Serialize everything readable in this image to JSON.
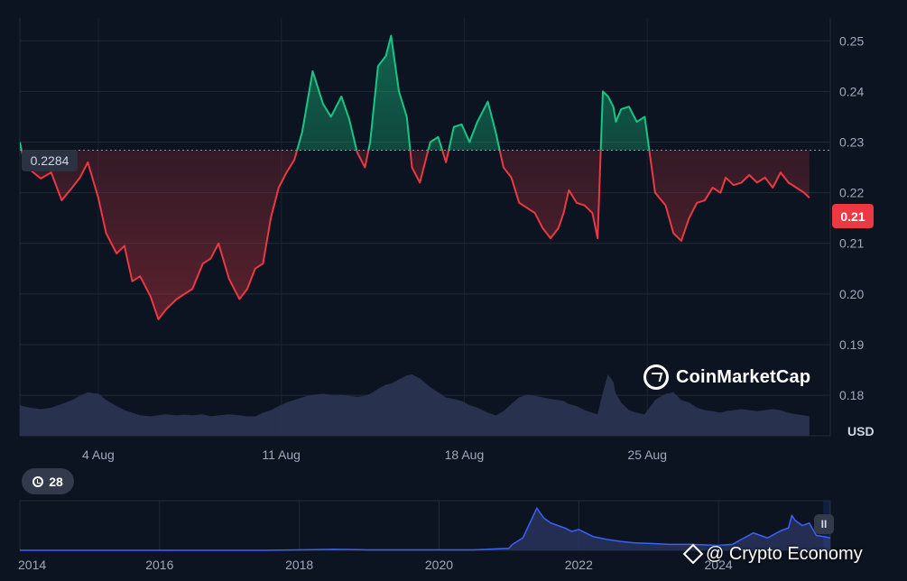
{
  "chart_data": [
    {
      "type": "area",
      "title": "",
      "currency_label": "USD",
      "y_ticks": [
        "0.25",
        "0.24",
        "0.23",
        "0.22",
        "0.21",
        "0.20",
        "0.19",
        "0.18"
      ],
      "y_tick_values": [
        0.25,
        0.24,
        0.23,
        0.22,
        0.21,
        0.2,
        0.19,
        0.18
      ],
      "ylim": [
        0.172,
        0.2545
      ],
      "x_ticks": [
        "4 Aug",
        "11 Aug",
        "18 Aug",
        "25 Aug"
      ],
      "x_tick_days": [
        4,
        11,
        18,
        25
      ],
      "x_range_days": [
        1,
        32
      ],
      "reference_value": 0.2284,
      "reference_label": "0.2284",
      "current_value_label": "0.21",
      "up_color": "#16c784",
      "down_color": "#ea3943",
      "grid": true,
      "legend": "none",
      "series": [
        {
          "x": [
            1.0,
            1.1,
            1.4,
            1.8,
            2.2,
            2.6,
            3.0,
            3.3,
            3.6,
            4.0,
            4.3,
            4.7,
            5.0,
            5.3,
            5.6,
            6.0,
            6.3,
            6.6,
            7.0,
            7.3,
            7.6,
            8.0,
            8.3,
            8.6,
            9.0,
            9.4,
            9.7,
            10.0,
            10.3,
            10.6,
            10.9,
            11.2,
            11.5,
            11.8,
            12.0,
            12.2,
            12.6,
            12.9,
            13.3,
            13.6,
            13.9,
            14.2,
            14.4,
            14.5,
            14.7,
            15.0,
            15.2,
            15.5,
            15.8,
            16.0,
            16.3,
            16.7,
            17.0,
            17.3,
            17.6,
            17.9,
            18.2,
            18.5,
            18.9,
            19.2,
            19.5,
            19.8,
            20.1,
            20.4,
            20.7,
            21.0,
            21.3,
            21.6,
            21.8,
            22.0,
            22.3,
            22.6,
            22.9,
            23.1,
            23.3,
            23.5,
            23.7,
            23.8,
            24.0,
            24.3,
            24.6,
            24.9,
            25.3,
            25.7,
            26.0,
            26.3,
            26.6,
            26.9,
            27.2,
            27.5,
            27.8,
            28.0,
            28.3,
            28.6,
            28.9,
            29.2,
            29.5,
            29.8,
            30.1,
            30.4,
            30.7,
            31.0,
            31.2
          ],
          "values": [
            0.23,
            0.2275,
            0.2245,
            0.2228,
            0.224,
            0.2185,
            0.221,
            0.223,
            0.226,
            0.219,
            0.212,
            0.208,
            0.2095,
            0.2025,
            0.2035,
            0.1995,
            0.195,
            0.197,
            0.199,
            0.2,
            0.201,
            0.206,
            0.207,
            0.21,
            0.203,
            0.199,
            0.201,
            0.205,
            0.206,
            0.215,
            0.221,
            0.224,
            0.2265,
            0.232,
            0.238,
            0.244,
            0.2375,
            0.235,
            0.239,
            0.2345,
            0.228,
            0.225,
            0.23,
            0.235,
            0.245,
            0.247,
            0.251,
            0.24,
            0.235,
            0.225,
            0.222,
            0.23,
            0.231,
            0.226,
            0.233,
            0.2335,
            0.23,
            0.234,
            0.238,
            0.232,
            0.225,
            0.223,
            0.218,
            0.217,
            0.216,
            0.213,
            0.211,
            0.213,
            0.216,
            0.2205,
            0.218,
            0.2175,
            0.216,
            0.211,
            0.24,
            0.239,
            0.237,
            0.234,
            0.2365,
            0.237,
            0.234,
            0.235,
            0.22,
            0.2175,
            0.212,
            0.2105,
            0.215,
            0.218,
            0.2185,
            0.221,
            0.22,
            0.223,
            0.2215,
            0.222,
            0.2235,
            0.222,
            0.223,
            0.221,
            0.224,
            0.222,
            0.221,
            0.22,
            0.219
          ],
          "volume": [
            0.6,
            0.58,
            0.55,
            0.52,
            0.55,
            0.62,
            0.7,
            0.78,
            0.85,
            0.82,
            0.7,
            0.58,
            0.5,
            0.45,
            0.4,
            0.38,
            0.4,
            0.42,
            0.4,
            0.41,
            0.4,
            0.42,
            0.38,
            0.4,
            0.42,
            0.4,
            0.38,
            0.38,
            0.45,
            0.5,
            0.58,
            0.65,
            0.7,
            0.75,
            0.78,
            0.8,
            0.82,
            0.8,
            0.8,
            0.78,
            0.76,
            0.78,
            0.82,
            0.85,
            0.92,
            1.0,
            1.02,
            1.1,
            1.18,
            1.2,
            1.12,
            0.95,
            0.85,
            0.75,
            0.72,
            0.68,
            0.6,
            0.55,
            0.45,
            0.4,
            0.48,
            0.62,
            0.75,
            0.8,
            0.78,
            0.75,
            0.72,
            0.7,
            0.68,
            0.62,
            0.58,
            0.5,
            0.45,
            0.42,
            0.85,
            1.2,
            1.05,
            0.82,
            0.65,
            0.5,
            0.45,
            0.42,
            0.7,
            0.82,
            0.85,
            0.7,
            0.65,
            0.55,
            0.5,
            0.48,
            0.45,
            0.48,
            0.5,
            0.52,
            0.5,
            0.48,
            0.5,
            0.52,
            0.5,
            0.45,
            0.42,
            0.4,
            0.38
          ]
        }
      ]
    },
    {
      "type": "area",
      "title": "",
      "x_ticks": [
        "2014",
        "2016",
        "2018",
        "2020",
        "2022",
        "2024"
      ],
      "x_tick_years": [
        2014,
        2016,
        2018,
        2020,
        2022,
        2024
      ],
      "xlim": [
        2014.0,
        2025.6
      ],
      "ylim": [
        0,
        1.0
      ],
      "line_color": "#3861fb",
      "series": [
        {
          "x": [
            2014.0,
            2015.0,
            2016.0,
            2017.0,
            2017.5,
            2018.0,
            2018.5,
            2019.0,
            2019.5,
            2020.0,
            2020.5,
            2021.0,
            2021.05,
            2021.2,
            2021.3,
            2021.4,
            2021.5,
            2021.6,
            2021.7,
            2021.8,
            2021.9,
            2022.0,
            2022.2,
            2022.4,
            2022.6,
            2022.8,
            2023.0,
            2023.3,
            2023.6,
            2024.0,
            2024.2,
            2024.3,
            2024.5,
            2024.7,
            2024.9,
            2025.0,
            2025.05,
            2025.1,
            2025.2,
            2025.3,
            2025.4,
            2025.5,
            2025.6
          ],
          "values": [
            0.0,
            0.0,
            0.0,
            0.0,
            0.0,
            0.01,
            0.02,
            0.01,
            0.01,
            0.01,
            0.01,
            0.04,
            0.12,
            0.25,
            0.55,
            0.85,
            0.65,
            0.55,
            0.5,
            0.45,
            0.38,
            0.42,
            0.28,
            0.22,
            0.18,
            0.15,
            0.14,
            0.12,
            0.12,
            0.1,
            0.12,
            0.2,
            0.35,
            0.25,
            0.4,
            0.45,
            0.7,
            0.6,
            0.5,
            0.55,
            0.3,
            0.28,
            0.25
          ]
        }
      ]
    }
  ],
  "controls": {
    "history_count": "28",
    "pause_label": "II"
  },
  "watermark": {
    "brand": "CoinMarketCap"
  },
  "credit": {
    "text": "@ Crypto Economy"
  }
}
